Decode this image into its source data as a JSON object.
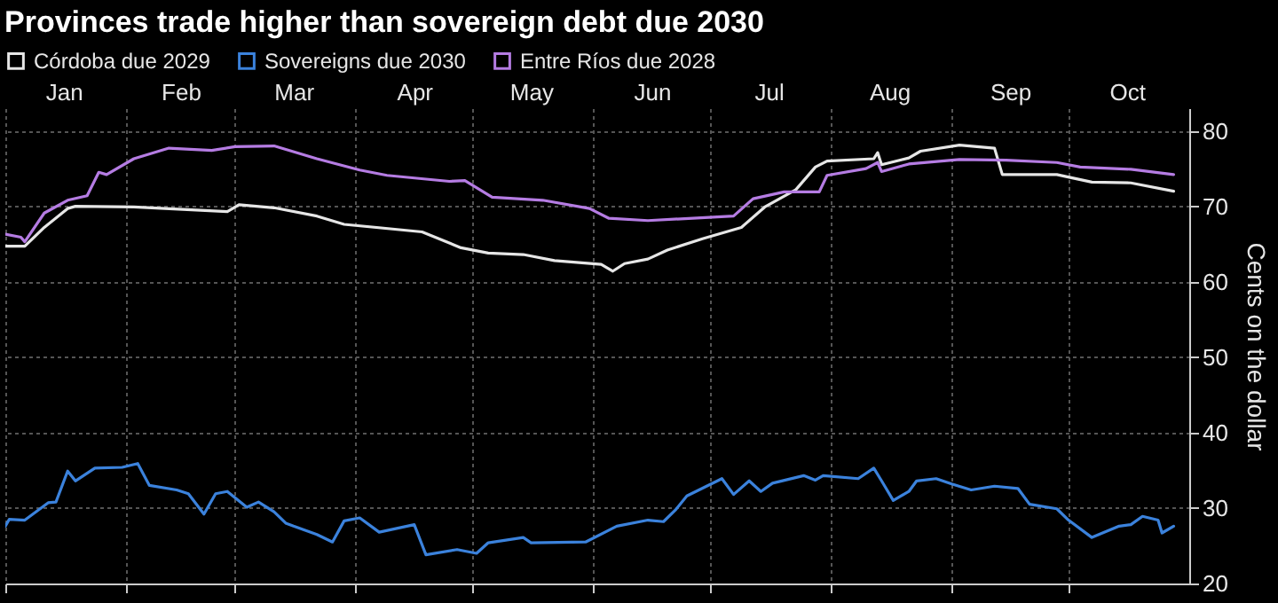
{
  "chart_data": {
    "type": "line",
    "title": "Provinces trade higher than sovereign debt due 2030",
    "ylabel": "Cents on the dollar",
    "xlim": [
      "--01-01",
      "--11-01"
    ],
    "ylim": [
      20,
      83
    ],
    "yticks": [
      20,
      30,
      40,
      50,
      60,
      70,
      80
    ],
    "xticks": [
      {
        "value": "--01-01",
        "label": null
      },
      {
        "value": "--01-16",
        "label": "Jan"
      },
      {
        "value": "--02-01",
        "label": null
      },
      {
        "value": "--02-15",
        "label": "Feb"
      },
      {
        "value": "--03-01",
        "label": null
      },
      {
        "value": "--03-16",
        "label": "Mar"
      },
      {
        "value": "--04-01",
        "label": null
      },
      {
        "value": "--04-16",
        "label": "Apr"
      },
      {
        "value": "--05-01",
        "label": null
      },
      {
        "value": "--05-16",
        "label": "May"
      },
      {
        "value": "--06-01",
        "label": null
      },
      {
        "value": "--06-16",
        "label": "Jun"
      },
      {
        "value": "--07-01",
        "label": null
      },
      {
        "value": "--07-16",
        "label": "Jul"
      },
      {
        "value": "--08-01",
        "label": null
      },
      {
        "value": "--08-16",
        "label": "Aug"
      },
      {
        "value": "--09-01",
        "label": null
      },
      {
        "value": "--09-16",
        "label": "Sep"
      },
      {
        "value": "--10-01",
        "label": null
      },
      {
        "value": "--10-16",
        "label": "Oct"
      }
    ],
    "grid": true,
    "legend": "top left",
    "line_style": "solid",
    "marker": "none",
    "series": [
      {
        "name": "Córdoba due 2029",
        "color": "#e6e6e6",
        "x": [
          "--01-01",
          "--01-06",
          "--01-11",
          "--01-17",
          "--01-19",
          "--02-03",
          "--02-27",
          "--03-02",
          "--03-11",
          "--03-22",
          "--03-29",
          "--04-18",
          "--04-28",
          "--05-05",
          "--05-14",
          "--05-22",
          "--06-03",
          "--06-06",
          "--06-09",
          "--06-15",
          "--06-20",
          "--06-29",
          "--07-09",
          "--07-15",
          "--07-23",
          "--07-28",
          "--07-31",
          "--08-12",
          "--08-13",
          "--08-14",
          "--08-21",
          "--08-24",
          "--09-03",
          "--09-12",
          "--09-14",
          "--09-28",
          "--10-07",
          "--10-17",
          "--10-28"
        ],
        "values": [
          64.7,
          64.7,
          67.2,
          69.7,
          70.0,
          69.9,
          69.3,
          70.2,
          69.8,
          68.7,
          67.6,
          66.6,
          64.5,
          63.8,
          63.6,
          62.8,
          62.3,
          61.4,
          62.4,
          63.0,
          64.2,
          65.7,
          67.2,
          69.9,
          72.2,
          75.2,
          76.0,
          76.3,
          77.1,
          75.5,
          76.4,
          77.3,
          78.1,
          77.7,
          74.2,
          74.2,
          73.2,
          73.1,
          72.0
        ]
      },
      {
        "name": "Sovereigns due 2030",
        "color": "#3b82dc",
        "x": [
          "--01-01",
          "--01-02",
          "--01-06",
          "--01-12",
          "--01-14",
          "--01-17",
          "--01-19",
          "--01-24",
          "--01-31",
          "--02-04",
          "--02-07",
          "--02-14",
          "--02-17",
          "--02-21",
          "--02-24",
          "--02-27",
          "--03-04",
          "--03-07",
          "--03-11",
          "--03-14",
          "--03-16",
          "--03-22",
          "--03-26",
          "--03-29",
          "--04-02",
          "--04-07",
          "--04-16",
          "--04-19",
          "--04-27",
          "--05-02",
          "--05-05",
          "--05-14",
          "--05-16",
          "--05-30",
          "--06-07",
          "--06-15",
          "--06-19",
          "--06-22",
          "--06-25",
          "--07-04",
          "--07-07",
          "--07-11",
          "--07-14",
          "--07-17",
          "--07-25",
          "--07-28",
          "--07-30",
          "--08-08",
          "--08-12",
          "--08-14",
          "--08-17",
          "--08-21",
          "--08-23",
          "--08-28",
          "--09-01",
          "--09-06",
          "--09-12",
          "--09-18",
          "--09-21",
          "--09-28",
          "--10-01",
          "--10-07",
          "--10-14",
          "--10-17",
          "--10-20",
          "--10-24",
          "--10-25",
          "--10-28"
        ],
        "values": [
          27.6,
          28.5,
          28.4,
          30.7,
          30.8,
          34.9,
          33.6,
          35.3,
          35.4,
          35.9,
          33.0,
          32.4,
          31.9,
          29.2,
          31.9,
          32.2,
          30.1,
          30.8,
          29.5,
          28.0,
          27.6,
          26.5,
          25.5,
          28.3,
          28.7,
          26.8,
          27.8,
          23.8,
          24.5,
          24.0,
          25.4,
          26.1,
          25.4,
          25.5,
          27.6,
          28.4,
          28.2,
          29.7,
          31.6,
          33.9,
          31.8,
          33.6,
          32.2,
          33.3,
          34.3,
          33.7,
          34.3,
          33.9,
          35.3,
          33.6,
          31.0,
          32.2,
          33.6,
          33.9,
          33.2,
          32.4,
          32.9,
          32.6,
          30.5,
          29.9,
          28.4,
          26.1,
          27.6,
          27.8,
          28.9,
          28.4,
          26.7,
          27.6
        ]
      },
      {
        "name": "Entre Ríos due 2028",
        "color": "#b57ce3",
        "x": [
          "--01-01",
          "--01-05",
          "--01-06",
          "--01-11",
          "--01-17",
          "--01-22",
          "--01-25",
          "--01-27",
          "--02-03",
          "--02-12",
          "--02-23",
          "--03-01",
          "--03-11",
          "--03-22",
          "--04-02",
          "--04-09",
          "--04-25",
          "--04-29",
          "--05-06",
          "--05-19",
          "--05-31",
          "--06-05",
          "--06-15",
          "--07-07",
          "--07-12",
          "--07-20",
          "--07-29",
          "--07-31",
          "--08-10",
          "--08-13",
          "--08-14",
          "--08-21",
          "--09-03",
          "--09-15",
          "--09-28",
          "--10-04",
          "--10-17",
          "--10-28"
        ],
        "values": [
          66.3,
          65.9,
          65.3,
          69.1,
          70.8,
          71.4,
          74.5,
          74.2,
          76.3,
          77.7,
          77.4,
          77.9,
          78.0,
          76.3,
          74.8,
          74.1,
          73.3,
          73.4,
          71.2,
          70.8,
          69.7,
          68.4,
          68.1,
          68.7,
          71.0,
          71.9,
          71.9,
          74.1,
          75.0,
          75.8,
          74.6,
          75.6,
          76.2,
          76.1,
          75.8,
          75.2,
          74.9,
          74.2
        ]
      }
    ]
  }
}
